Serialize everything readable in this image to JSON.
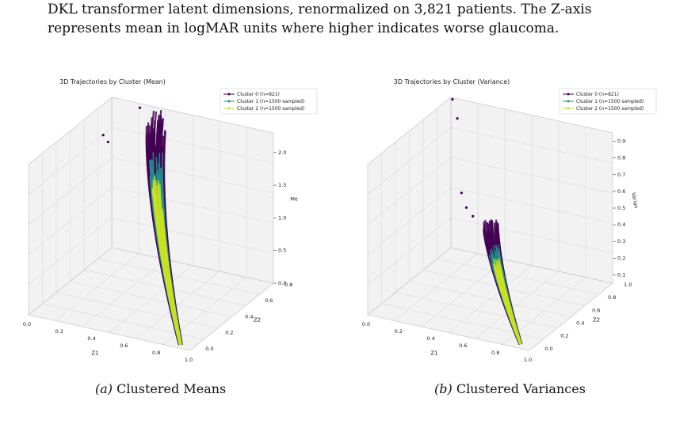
{
  "caption": {
    "line1": "DKL transformer latent dimensions, renormalized on 3,821 patients. The Z-axis",
    "line2": "represents mean in logMAR units where higher indicates worse glaucoma."
  },
  "colors": {
    "cluster0": "#440154",
    "cluster1": "#21918c",
    "cluster2": "#c8e020",
    "pane": "#f2f2f2",
    "grid": "#d9d9d9"
  },
  "chart_data": [
    {
      "type": "scatter",
      "title": "3D Trajectories by Cluster (Mean)",
      "xlabel": "Z1",
      "ylabel": "Z2",
      "zlabel": "Me",
      "x_ticks": [
        "0.0",
        "0.2",
        "0.4",
        "0.6",
        "0.8",
        "1.0"
      ],
      "y_ticks": [
        "0.0",
        "0.2",
        "0.4",
        "0.6",
        "0.8"
      ],
      "z_ticks": [
        "0.0",
        "0.5",
        "1.0",
        "1.5",
        "2.0"
      ],
      "xlim": [
        0,
        1
      ],
      "ylim": [
        0,
        1
      ],
      "zlim": [
        0,
        2.3
      ],
      "legend": "top-right",
      "series": [
        {
          "name": "Cluster 0 (n=821)",
          "color": "#440154"
        },
        {
          "name": "Cluster 1 (n=1500 sampled)",
          "color": "#21918c"
        },
        {
          "name": "Cluster 2 (n=1500 sampled)",
          "color": "#c8e020"
        }
      ],
      "subcaption_label": "(a)",
      "subcaption_text": " Clustered Means"
    },
    {
      "type": "scatter",
      "title": "3D Trajectories by Cluster (Variance)",
      "xlabel": "Z1",
      "ylabel": "Z2",
      "zlabel": "Varian",
      "x_ticks": [
        "0.0",
        "0.2",
        "0.4",
        "0.6",
        "0.8",
        "1.0"
      ],
      "y_ticks": [
        "0.0",
        "0.2",
        "0.4",
        "0.6",
        "0.8",
        "1.0"
      ],
      "z_ticks": [
        "0.1",
        "0.2",
        "0.3",
        "0.4",
        "0.5",
        "0.6",
        "0.7",
        "0.8",
        "0.9"
      ],
      "xlim": [
        0,
        1
      ],
      "ylim": [
        0,
        1
      ],
      "zlim": [
        0.05,
        0.95
      ],
      "legend": "top-right",
      "series": [
        {
          "name": "Cluster 0 (n=821)",
          "color": "#440154"
        },
        {
          "name": "Cluster 1 (n=1500 sampled)",
          "color": "#21918c"
        },
        {
          "name": "Cluster 2 (n=1500 sampled)",
          "color": "#c8e020"
        }
      ],
      "subcaption_label": "(b)",
      "subcaption_text": " Clustered Variances"
    }
  ]
}
